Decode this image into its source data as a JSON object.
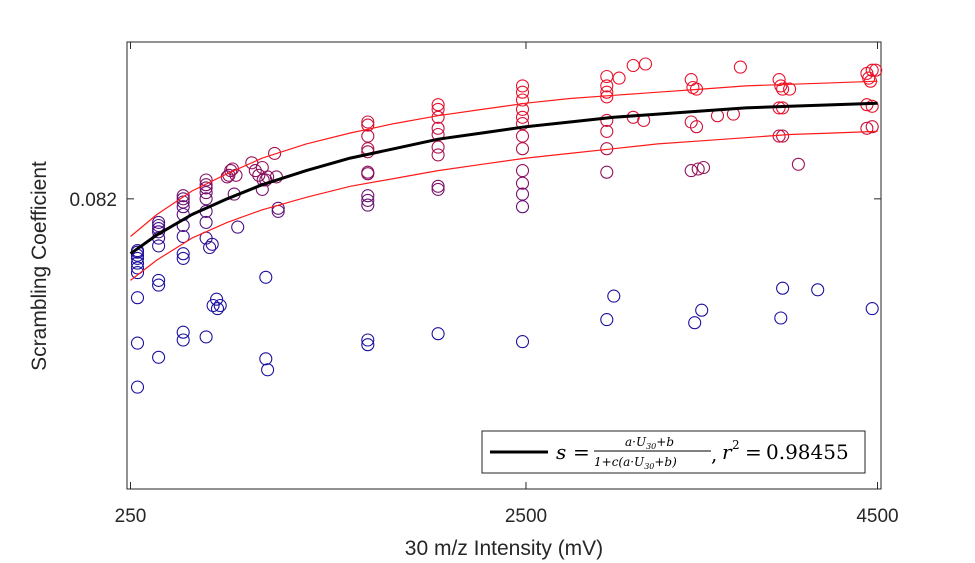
{
  "chart_data": {
    "type": "scatter",
    "title": "",
    "xlabel": "30 m/z Intensity (mV)",
    "ylabel": "Scrambling Coefficient",
    "xlim": [
      230,
      4520
    ],
    "ylim": [
      0.0635,
      0.092
    ],
    "xticks": [
      250,
      2500,
      4500
    ],
    "xtick_labels": [
      "250",
      "2500",
      "4500"
    ],
    "yticks": [
      0.082
    ],
    "ytick_labels": [
      "0.082"
    ],
    "grid": false,
    "legend_position": "bottom-right",
    "colors": {
      "fit": "#000000",
      "bounds": "#ff1a1a",
      "marker_low": "#1a10a0",
      "marker_high": "#e8102a",
      "axis": "#262626"
    },
    "fit_curve": {
      "x": [
        250,
        400,
        600,
        800,
        1000,
        1250,
        1500,
        1750,
        2000,
        2250,
        2500,
        2750,
        3000,
        3250,
        3500,
        3750,
        4000,
        4250,
        4500
      ],
      "y": [
        0.0785,
        0.0797,
        0.081,
        0.082,
        0.0829,
        0.0838,
        0.0846,
        0.0852,
        0.0858,
        0.0862,
        0.0866,
        0.0869,
        0.0872,
        0.0874,
        0.0876,
        0.0878,
        0.0879,
        0.088,
        0.0881
      ]
    },
    "upper_bound": {
      "x": [
        250,
        400,
        600,
        800,
        1000,
        1250,
        1500,
        1750,
        2000,
        2250,
        2500,
        2750,
        3000,
        3250,
        3500,
        3750,
        4000,
        4250,
        4500
      ],
      "y": [
        0.0796,
        0.081,
        0.0825,
        0.0836,
        0.0846,
        0.0855,
        0.0862,
        0.0868,
        0.0873,
        0.0877,
        0.0881,
        0.0884,
        0.0886,
        0.0888,
        0.089,
        0.0892,
        0.0893,
        0.0894,
        0.0895
      ]
    },
    "lower_bound": {
      "x": [
        250,
        400,
        600,
        800,
        1000,
        1250,
        1500,
        1750,
        2000,
        2250,
        2500,
        2750,
        3000,
        3250,
        3500,
        3750,
        4000,
        4250,
        4500
      ],
      "y": [
        0.0768,
        0.0781,
        0.0795,
        0.0805,
        0.0813,
        0.0821,
        0.0828,
        0.0833,
        0.0838,
        0.0842,
        0.0846,
        0.0849,
        0.0852,
        0.0855,
        0.0857,
        0.0859,
        0.0861,
        0.0862,
        0.0863
      ]
    },
    "scatter_points": [
      {
        "x": 290,
        "y": 0.0787
      },
      {
        "x": 290,
        "y": 0.0786
      },
      {
        "x": 290,
        "y": 0.0784
      },
      {
        "x": 290,
        "y": 0.0782
      },
      {
        "x": 290,
        "y": 0.0779
      },
      {
        "x": 290,
        "y": 0.0776
      },
      {
        "x": 290,
        "y": 0.0773
      },
      {
        "x": 290,
        "y": 0.0757
      },
      {
        "x": 290,
        "y": 0.0728
      },
      {
        "x": 290,
        "y": 0.07
      },
      {
        "x": 410,
        "y": 0.0805
      },
      {
        "x": 410,
        "y": 0.0803
      },
      {
        "x": 410,
        "y": 0.0801
      },
      {
        "x": 410,
        "y": 0.0799
      },
      {
        "x": 410,
        "y": 0.0795
      },
      {
        "x": 410,
        "y": 0.079
      },
      {
        "x": 410,
        "y": 0.0768
      },
      {
        "x": 410,
        "y": 0.0765
      },
      {
        "x": 410,
        "y": 0.0719
      },
      {
        "x": 550,
        "y": 0.0822
      },
      {
        "x": 550,
        "y": 0.082
      },
      {
        "x": 550,
        "y": 0.0818
      },
      {
        "x": 550,
        "y": 0.0815
      },
      {
        "x": 550,
        "y": 0.081
      },
      {
        "x": 550,
        "y": 0.0803
      },
      {
        "x": 550,
        "y": 0.0796
      },
      {
        "x": 550,
        "y": 0.0785
      },
      {
        "x": 550,
        "y": 0.0782
      },
      {
        "x": 550,
        "y": 0.0735
      },
      {
        "x": 550,
        "y": 0.073
      },
      {
        "x": 680,
        "y": 0.0832
      },
      {
        "x": 680,
        "y": 0.0829
      },
      {
        "x": 680,
        "y": 0.0827
      },
      {
        "x": 680,
        "y": 0.0824
      },
      {
        "x": 680,
        "y": 0.082
      },
      {
        "x": 680,
        "y": 0.0812
      },
      {
        "x": 680,
        "y": 0.0805
      },
      {
        "x": 680,
        "y": 0.0795
      },
      {
        "x": 680,
        "y": 0.0732
      },
      {
        "x": 700,
        "y": 0.0789
      },
      {
        "x": 715,
        "y": 0.0791
      },
      {
        "x": 720,
        "y": 0.0752
      },
      {
        "x": 740,
        "y": 0.0756
      },
      {
        "x": 745,
        "y": 0.075
      },
      {
        "x": 760,
        "y": 0.0752
      },
      {
        "x": 800,
        "y": 0.0834
      },
      {
        "x": 810,
        "y": 0.0835
      },
      {
        "x": 820,
        "y": 0.0838
      },
      {
        "x": 830,
        "y": 0.0839
      },
      {
        "x": 840,
        "y": 0.0823
      },
      {
        "x": 850,
        "y": 0.0835
      },
      {
        "x": 860,
        "y": 0.0802
      },
      {
        "x": 940,
        "y": 0.0843
      },
      {
        "x": 960,
        "y": 0.0838
      },
      {
        "x": 980,
        "y": 0.0835
      },
      {
        "x": 1000,
        "y": 0.084
      },
      {
        "x": 1000,
        "y": 0.0826
      },
      {
        "x": 1005,
        "y": 0.0832
      },
      {
        "x": 1020,
        "y": 0.0832
      },
      {
        "x": 1030,
        "y": 0.0834
      },
      {
        "x": 1020,
        "y": 0.077
      },
      {
        "x": 1020,
        "y": 0.0718
      },
      {
        "x": 1030,
        "y": 0.0711
      },
      {
        "x": 1070,
        "y": 0.0849
      },
      {
        "x": 1080,
        "y": 0.0834
      },
      {
        "x": 1090,
        "y": 0.0814
      },
      {
        "x": 1090,
        "y": 0.0812
      },
      {
        "x": 1600,
        "y": 0.0869
      },
      {
        "x": 1600,
        "y": 0.0867
      },
      {
        "x": 1600,
        "y": 0.086
      },
      {
        "x": 1600,
        "y": 0.0852
      },
      {
        "x": 1600,
        "y": 0.085
      },
      {
        "x": 1600,
        "y": 0.0837
      },
      {
        "x": 1600,
        "y": 0.0836
      },
      {
        "x": 1600,
        "y": 0.0822
      },
      {
        "x": 1600,
        "y": 0.0819
      },
      {
        "x": 1600,
        "y": 0.0816
      },
      {
        "x": 1600,
        "y": 0.073
      },
      {
        "x": 1600,
        "y": 0.0727
      },
      {
        "x": 2000,
        "y": 0.088
      },
      {
        "x": 2000,
        "y": 0.0877
      },
      {
        "x": 2000,
        "y": 0.0872
      },
      {
        "x": 2000,
        "y": 0.0865
      },
      {
        "x": 2000,
        "y": 0.0861
      },
      {
        "x": 2000,
        "y": 0.0853
      },
      {
        "x": 2000,
        "y": 0.0848
      },
      {
        "x": 2000,
        "y": 0.0828
      },
      {
        "x": 2000,
        "y": 0.0826
      },
      {
        "x": 2000,
        "y": 0.0734
      },
      {
        "x": 2480,
        "y": 0.0892
      },
      {
        "x": 2480,
        "y": 0.0888
      },
      {
        "x": 2480,
        "y": 0.0883
      },
      {
        "x": 2480,
        "y": 0.0877
      },
      {
        "x": 2480,
        "y": 0.0872
      },
      {
        "x": 2480,
        "y": 0.0868
      },
      {
        "x": 2480,
        "y": 0.086
      },
      {
        "x": 2480,
        "y": 0.0852
      },
      {
        "x": 2480,
        "y": 0.0838
      },
      {
        "x": 2480,
        "y": 0.083
      },
      {
        "x": 2480,
        "y": 0.0823
      },
      {
        "x": 2480,
        "y": 0.0815
      },
      {
        "x": 2480,
        "y": 0.0729
      },
      {
        "x": 2960,
        "y": 0.0898
      },
      {
        "x": 2960,
        "y": 0.0892
      },
      {
        "x": 2960,
        "y": 0.0888
      },
      {
        "x": 2960,
        "y": 0.0885
      },
      {
        "x": 2960,
        "y": 0.087
      },
      {
        "x": 2960,
        "y": 0.0863
      },
      {
        "x": 2960,
        "y": 0.0852
      },
      {
        "x": 2960,
        "y": 0.0837
      },
      {
        "x": 2960,
        "y": 0.0743
      },
      {
        "x": 3000,
        "y": 0.0758
      },
      {
        "x": 3030,
        "y": 0.0897
      },
      {
        "x": 3110,
        "y": 0.0905
      },
      {
        "x": 3180,
        "y": 0.0906
      },
      {
        "x": 3110,
        "y": 0.0872
      },
      {
        "x": 3170,
        "y": 0.087
      },
      {
        "x": 3440,
        "y": 0.0896
      },
      {
        "x": 3450,
        "y": 0.0891
      },
      {
        "x": 3470,
        "y": 0.089
      },
      {
        "x": 3440,
        "y": 0.0869
      },
      {
        "x": 3470,
        "y": 0.0866
      },
      {
        "x": 3440,
        "y": 0.0838
      },
      {
        "x": 3480,
        "y": 0.0839
      },
      {
        "x": 3510,
        "y": 0.084
      },
      {
        "x": 3460,
        "y": 0.0741
      },
      {
        "x": 3500,
        "y": 0.0749
      },
      {
        "x": 3590,
        "y": 0.0873
      },
      {
        "x": 3680,
        "y": 0.0874
      },
      {
        "x": 3720,
        "y": 0.0904
      },
      {
        "x": 3940,
        "y": 0.0896
      },
      {
        "x": 3950,
        "y": 0.0892
      },
      {
        "x": 3960,
        "y": 0.089
      },
      {
        "x": 3940,
        "y": 0.0878
      },
      {
        "x": 3960,
        "y": 0.0878
      },
      {
        "x": 3940,
        "y": 0.086
      },
      {
        "x": 3960,
        "y": 0.086
      },
      {
        "x": 3960,
        "y": 0.0763
      },
      {
        "x": 3950,
        "y": 0.0744
      },
      {
        "x": 4000,
        "y": 0.089
      },
      {
        "x": 4050,
        "y": 0.0842
      },
      {
        "x": 4160,
        "y": 0.0762
      },
      {
        "x": 4440,
        "y": 0.09
      },
      {
        "x": 4450,
        "y": 0.0897
      },
      {
        "x": 4470,
        "y": 0.0902
      },
      {
        "x": 4490,
        "y": 0.0902
      },
      {
        "x": 4460,
        "y": 0.0895
      },
      {
        "x": 4440,
        "y": 0.088
      },
      {
        "x": 4470,
        "y": 0.0879
      },
      {
        "x": 4440,
        "y": 0.0865
      },
      {
        "x": 4470,
        "y": 0.0866
      },
      {
        "x": 4470,
        "y": 0.075
      }
    ]
  },
  "legend": {
    "r_squared_text": "0.98455"
  }
}
